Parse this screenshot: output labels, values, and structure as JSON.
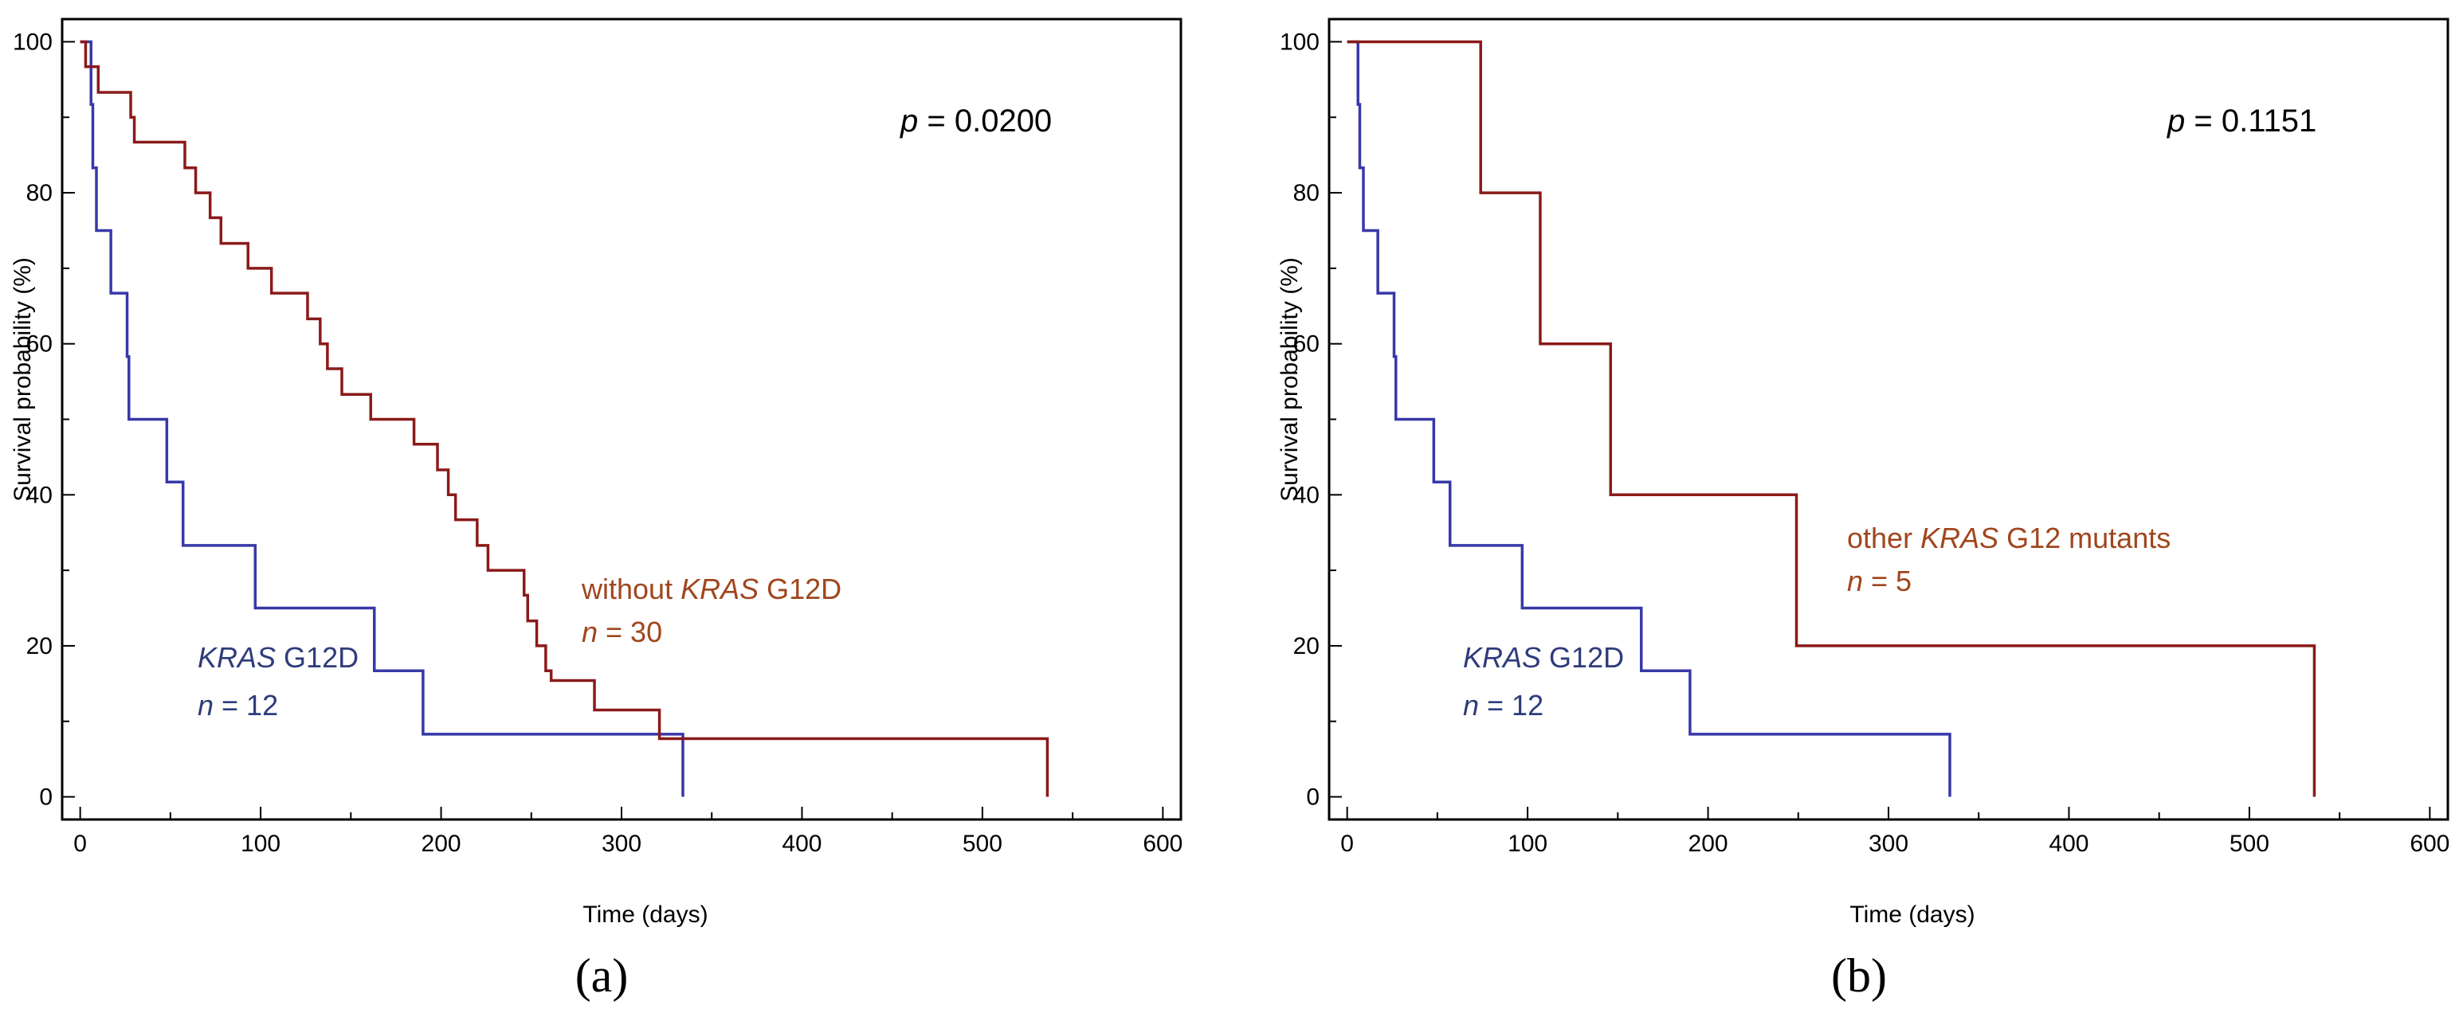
{
  "colors": {
    "red": "#8B1A1A",
    "blue": "#3838A8",
    "annot_red": "#A0461E",
    "annot_blue": "#2E3C7C",
    "axis": "#000000"
  },
  "chart_data": [
    {
      "type": "line",
      "panel_label": "(a)",
      "xlabel": "Time (days)",
      "ylabel": "Survival probability (%)",
      "xlim": [
        -10,
        610
      ],
      "ylim": [
        -3,
        103
      ],
      "x_ticks": [
        0,
        100,
        200,
        300,
        400,
        500,
        600
      ],
      "y_ticks": [
        0,
        20,
        40,
        60,
        80,
        100
      ],
      "x_tick_labels": [
        "0",
        "100",
        "200",
        "300",
        "400",
        "500",
        "600"
      ],
      "y_tick_labels": [
        "0",
        "20",
        "40",
        "60",
        "80",
        "100"
      ],
      "pvalue": {
        "symbol": "p",
        "text": " = 0.0200"
      },
      "series": [
        {
          "name": "KRAS G12D",
          "color": "blue",
          "label_italic": "KRAS",
          "label_rest": " G12D",
          "n_label": {
            "symbol": "n",
            "text": " = 12"
          },
          "steps": [
            [
              0,
              100
            ],
            [
              6,
              91.7
            ],
            [
              7,
              83.3
            ],
            [
              9,
              75
            ],
            [
              17,
              66.7
            ],
            [
              26,
              58.3
            ],
            [
              27,
              50
            ],
            [
              48,
              41.7
            ],
            [
              57,
              33.3
            ],
            [
              97,
              25
            ],
            [
              163,
              16.7
            ],
            [
              190,
              8.3
            ],
            [
              334,
              0
            ]
          ]
        },
        {
          "name": "without KRAS G12D",
          "color": "red",
          "label_plain": "without ",
          "label_italic": "KRAS",
          "label_rest": " G12D",
          "n_label": {
            "symbol": "n",
            "text": " = 30"
          },
          "steps": [
            [
              0,
              100
            ],
            [
              3,
              96.7
            ],
            [
              10,
              93.3
            ],
            [
              28,
              90
            ],
            [
              30,
              86.7
            ],
            [
              58,
              83.3
            ],
            [
              64,
              80
            ],
            [
              72,
              76.7
            ],
            [
              78,
              73.3
            ],
            [
              93,
              70
            ],
            [
              106,
              66.7
            ],
            [
              126,
              63.3
            ],
            [
              133,
              60
            ],
            [
              137,
              56.7
            ],
            [
              145,
              53.3
            ],
            [
              161,
              50
            ],
            [
              185,
              46.7
            ],
            [
              198,
              43.3
            ],
            [
              204,
              40
            ],
            [
              208,
              36.7
            ],
            [
              220,
              33.3
            ],
            [
              226,
              30
            ],
            [
              246,
              26.7
            ],
            [
              248,
              23.3
            ],
            [
              253,
              20
            ],
            [
              258,
              16.7
            ],
            [
              261,
              15.4
            ],
            [
              285,
              11.5
            ],
            [
              321,
              7.7
            ],
            [
              536,
              0
            ]
          ]
        }
      ]
    },
    {
      "type": "line",
      "panel_label": "(b)",
      "xlabel": "Time (days)",
      "ylabel": "Survival probability (%)",
      "xlim": [
        -10,
        610
      ],
      "ylim": [
        -3,
        103
      ],
      "x_ticks": [
        0,
        100,
        200,
        300,
        400,
        500,
        600
      ],
      "y_ticks": [
        0,
        20,
        40,
        60,
        80,
        100
      ],
      "x_tick_labels": [
        "0",
        "100",
        "200",
        "300",
        "400",
        "500",
        "600"
      ],
      "y_tick_labels": [
        "0",
        "20",
        "40",
        "60",
        "80",
        "100"
      ],
      "pvalue": {
        "symbol": "p",
        "text": " = 0.1151"
      },
      "series": [
        {
          "name": "KRAS G12D",
          "color": "blue",
          "label_italic": "KRAS",
          "label_rest": " G12D",
          "n_label": {
            "symbol": "n",
            "text": " = 12"
          },
          "steps": [
            [
              0,
              100
            ],
            [
              6,
              91.7
            ],
            [
              7,
              83.3
            ],
            [
              9,
              75
            ],
            [
              17,
              66.7
            ],
            [
              26,
              58.3
            ],
            [
              27,
              50
            ],
            [
              48,
              41.7
            ],
            [
              57,
              33.3
            ],
            [
              97,
              25
            ],
            [
              163,
              16.7
            ],
            [
              190,
              8.3
            ],
            [
              334,
              0
            ]
          ]
        },
        {
          "name": "other KRAS G12 mutants",
          "color": "red",
          "label_plain": "other ",
          "label_italic": "KRAS",
          "label_rest": " G12 mutants",
          "n_label": {
            "symbol": "n",
            "text": " = 5"
          },
          "steps": [
            [
              0,
              100
            ],
            [
              74,
              80
            ],
            [
              107,
              60
            ],
            [
              146,
              40
            ],
            [
              249,
              20
            ],
            [
              536,
              0
            ]
          ]
        }
      ]
    }
  ]
}
